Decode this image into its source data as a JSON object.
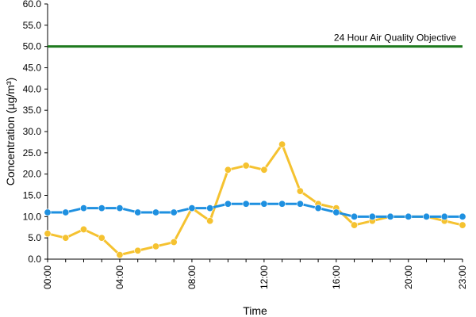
{
  "chart_data": {
    "type": "line",
    "xlabel": "Time",
    "ylabel": "Concentration (µg/m³)",
    "x_ticks": [
      "00:00",
      "04:00",
      "08:00",
      "12:00",
      "16:00",
      "20:00",
      "23:00"
    ],
    "x_tick_hours": [
      0,
      4,
      8,
      12,
      16,
      20,
      23
    ],
    "x": [
      "00:00",
      "01:00",
      "02:00",
      "03:00",
      "04:00",
      "05:00",
      "06:00",
      "07:00",
      "08:00",
      "09:00",
      "10:00",
      "11:00",
      "12:00",
      "13:00",
      "14:00",
      "15:00",
      "16:00",
      "17:00",
      "18:00",
      "19:00",
      "20:00",
      "21:00",
      "22:00",
      "23:00"
    ],
    "ylim": [
      0,
      60
    ],
    "y_ticks": [
      "0.0",
      "5.0",
      "10.0",
      "15.0",
      "20.0",
      "25.0",
      "30.0",
      "35.0",
      "40.0",
      "45.0",
      "50.0",
      "55.0",
      "60.0"
    ],
    "grid": false,
    "series": [
      {
        "color": "#f5c230",
        "values": [
          6,
          5,
          7,
          5,
          1,
          2,
          3,
          4,
          12,
          9,
          21,
          22,
          21,
          27,
          16,
          13,
          12,
          8,
          9,
          10,
          10,
          10,
          9,
          8
        ]
      },
      {
        "color": "#1e90e0",
        "values": [
          11,
          11,
          12,
          12,
          12,
          11,
          11,
          11,
          12,
          12,
          13,
          13,
          13,
          13,
          13,
          12,
          11,
          10,
          10,
          10,
          10,
          10,
          10,
          10
        ]
      }
    ],
    "objective": {
      "label": "24 Hour Air Quality Objective",
      "value": 50,
      "color": "#1e7a1e"
    }
  }
}
